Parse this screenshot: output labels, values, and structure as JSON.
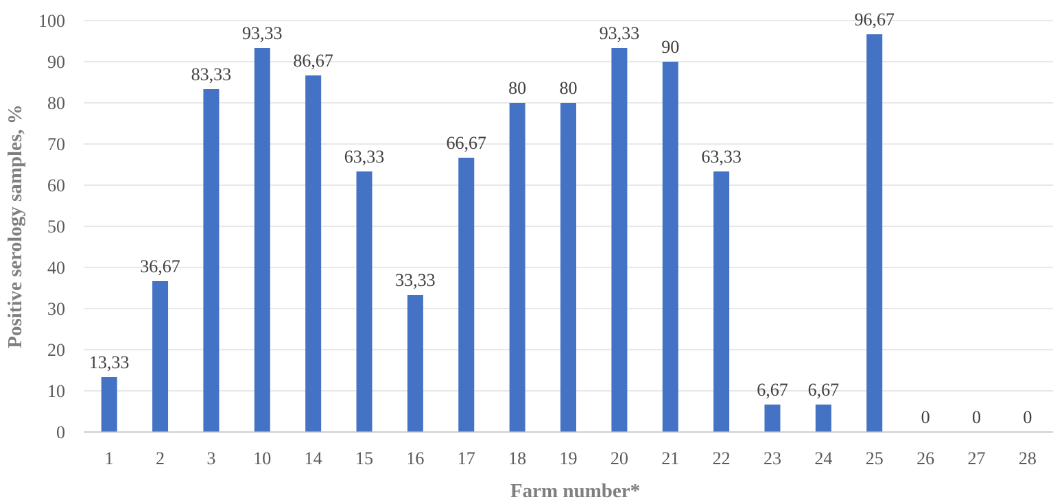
{
  "chart_data": {
    "type": "bar",
    "title": "",
    "xlabel": "Farm number*",
    "ylabel": "Positive serology samples, %",
    "categories": [
      "1",
      "2",
      "3",
      "10",
      "14",
      "15",
      "16",
      "17",
      "18",
      "19",
      "20",
      "21",
      "22",
      "23",
      "24",
      "25",
      "26",
      "27",
      "28"
    ],
    "values": [
      13.33,
      36.67,
      83.33,
      93.33,
      86.67,
      63.33,
      33.33,
      66.67,
      80,
      80,
      93.33,
      90,
      63.33,
      6.67,
      6.67,
      96.67,
      0,
      0,
      0
    ],
    "data_labels": [
      "13,33",
      "36,67",
      "83,33",
      "93,33",
      "86,67",
      "63,33",
      "33,33",
      "66,67",
      "80",
      "80",
      "93,33",
      "90",
      "63,33",
      "6,67",
      "6,67",
      "96,67",
      "0",
      "0",
      "0"
    ],
    "y_ticks": [
      "0",
      "10",
      "20",
      "30",
      "40",
      "50",
      "60",
      "70",
      "80",
      "90",
      "100"
    ],
    "ylim": [
      0,
      100
    ],
    "grid": true,
    "legend": "none",
    "bar_color": "#4472C4",
    "grid_color": "#d9d9d9"
  }
}
